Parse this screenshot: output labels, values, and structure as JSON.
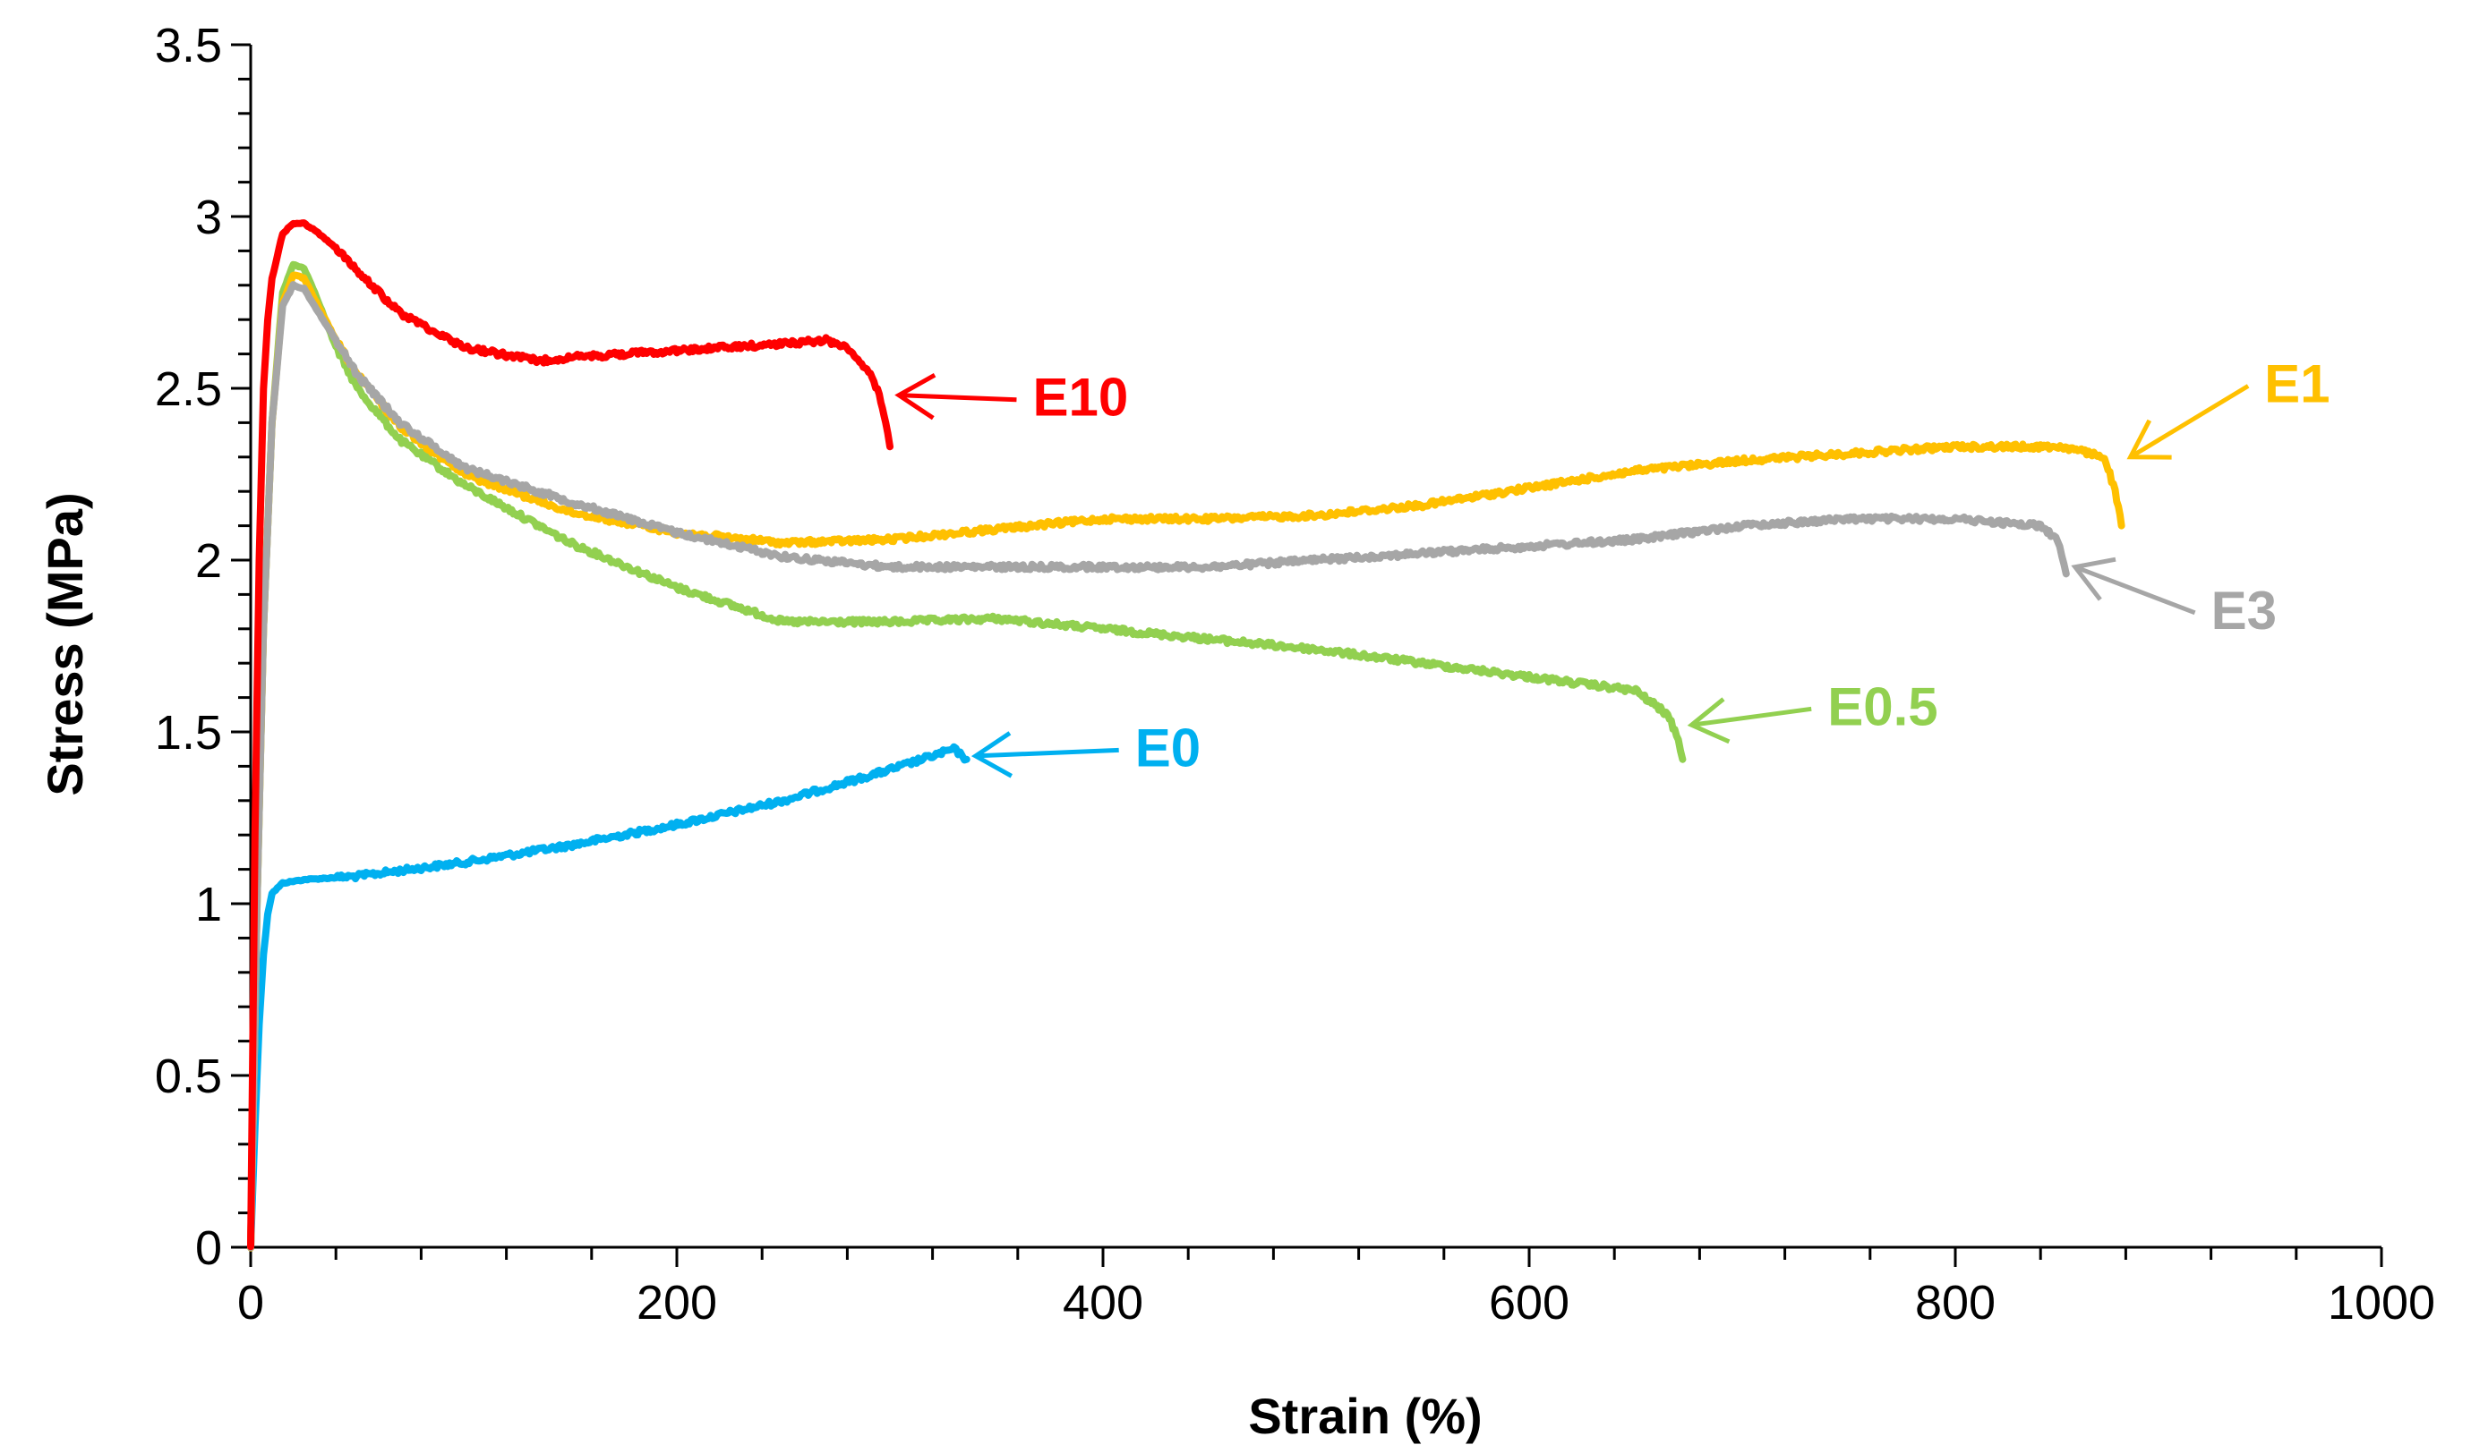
{
  "chart_data": {
    "type": "line",
    "title": "",
    "xlabel": "Strain (%)",
    "ylabel": "Stress (MPa)",
    "xlim": [
      0,
      1000
    ],
    "ylim": [
      0,
      3.5
    ],
    "x_ticks": [
      0,
      200,
      400,
      600,
      800,
      1000
    ],
    "y_ticks": [
      0,
      0.5,
      1,
      1.5,
      2,
      2.5,
      3,
      3.5
    ],
    "x_tick_labels": [
      "0",
      "200",
      "400",
      "600",
      "800",
      "1000"
    ],
    "y_tick_labels": [
      "0",
      "0.5",
      "1",
      "1.5",
      "2",
      "2.5",
      "3",
      "3.5"
    ],
    "grid": false,
    "legend": "inline-arrow-labels",
    "series": [
      {
        "name": "E0",
        "color": "#00B0F0",
        "x": [
          0,
          2,
          4,
          6,
          8,
          10,
          15,
          25,
          50,
          100,
          150,
          200,
          250,
          300,
          320,
          330,
          332,
          334,
          336
        ],
        "y": [
          0,
          0.35,
          0.65,
          0.85,
          0.97,
          1.03,
          1.06,
          1.07,
          1.08,
          1.12,
          1.17,
          1.23,
          1.3,
          1.39,
          1.43,
          1.45,
          1.44,
          1.43,
          1.42
        ],
        "label_pos": [
          415,
          1.4
        ],
        "arrow_tip": [
          336,
          1.43
        ]
      },
      {
        "name": "E0.5",
        "color": "#92D050",
        "x": [
          0,
          3,
          6,
          10,
          15,
          20,
          25,
          30,
          40,
          50,
          70,
          100,
          150,
          200,
          250,
          300,
          350,
          400,
          450,
          500,
          550,
          600,
          650,
          665,
          670,
          672
        ],
        "y": [
          0,
          1.0,
          1.8,
          2.4,
          2.78,
          2.86,
          2.85,
          2.78,
          2.62,
          2.5,
          2.35,
          2.22,
          2.05,
          1.92,
          1.82,
          1.82,
          1.83,
          1.8,
          1.77,
          1.74,
          1.7,
          1.66,
          1.62,
          1.55,
          1.48,
          1.42
        ],
        "label_pos": [
          740,
          1.52
        ],
        "arrow_tip": [
          672,
          1.52
        ]
      },
      {
        "name": "E1",
        "color": "#FFC000",
        "x": [
          0,
          3,
          6,
          10,
          15,
          20,
          25,
          30,
          40,
          50,
          70,
          100,
          150,
          200,
          250,
          300,
          350,
          400,
          450,
          500,
          550,
          600,
          650,
          700,
          750,
          800,
          850,
          870,
          875,
          878
        ],
        "y": [
          0,
          1.0,
          1.8,
          2.4,
          2.75,
          2.83,
          2.82,
          2.76,
          2.64,
          2.54,
          2.39,
          2.25,
          2.14,
          2.08,
          2.05,
          2.06,
          2.09,
          2.12,
          2.12,
          2.13,
          2.16,
          2.21,
          2.26,
          2.29,
          2.31,
          2.33,
          2.33,
          2.3,
          2.2,
          2.1
        ],
        "label_pos": [
          945,
          2.46
        ],
        "arrow_tip": [
          878,
          2.3
        ]
      },
      {
        "name": "E3",
        "color": "#A6A6A6",
        "x": [
          0,
          3,
          6,
          10,
          15,
          20,
          25,
          30,
          40,
          50,
          70,
          100,
          150,
          200,
          250,
          300,
          350,
          400,
          450,
          500,
          550,
          600,
          650,
          700,
          750,
          800,
          840,
          848,
          850,
          852
        ],
        "y": [
          0,
          1.0,
          1.8,
          2.4,
          2.74,
          2.8,
          2.79,
          2.74,
          2.64,
          2.54,
          2.4,
          2.27,
          2.17,
          2.08,
          2.01,
          1.98,
          1.98,
          1.98,
          1.98,
          2.0,
          2.02,
          2.04,
          2.06,
          2.1,
          2.12,
          2.12,
          2.1,
          2.06,
          2.01,
          1.96
        ],
        "label_pos": [
          920,
          1.8
        ],
        "arrow_tip": [
          852,
          1.98
        ]
      },
      {
        "name": "E10",
        "color": "#FF0000",
        "x": [
          0,
          2,
          4,
          6,
          8,
          10,
          15,
          20,
          25,
          30,
          40,
          50,
          70,
          100,
          135,
          150,
          200,
          250,
          270,
          280,
          290,
          295,
          298,
          300
        ],
        "y": [
          0,
          1.2,
          2.0,
          2.5,
          2.7,
          2.82,
          2.95,
          2.98,
          2.98,
          2.96,
          2.91,
          2.84,
          2.72,
          2.62,
          2.58,
          2.59,
          2.61,
          2.63,
          2.64,
          2.62,
          2.55,
          2.48,
          2.4,
          2.33
        ],
        "label_pos": [
          367,
          2.42
        ],
        "arrow_tip": [
          300,
          2.48
        ]
      }
    ]
  }
}
